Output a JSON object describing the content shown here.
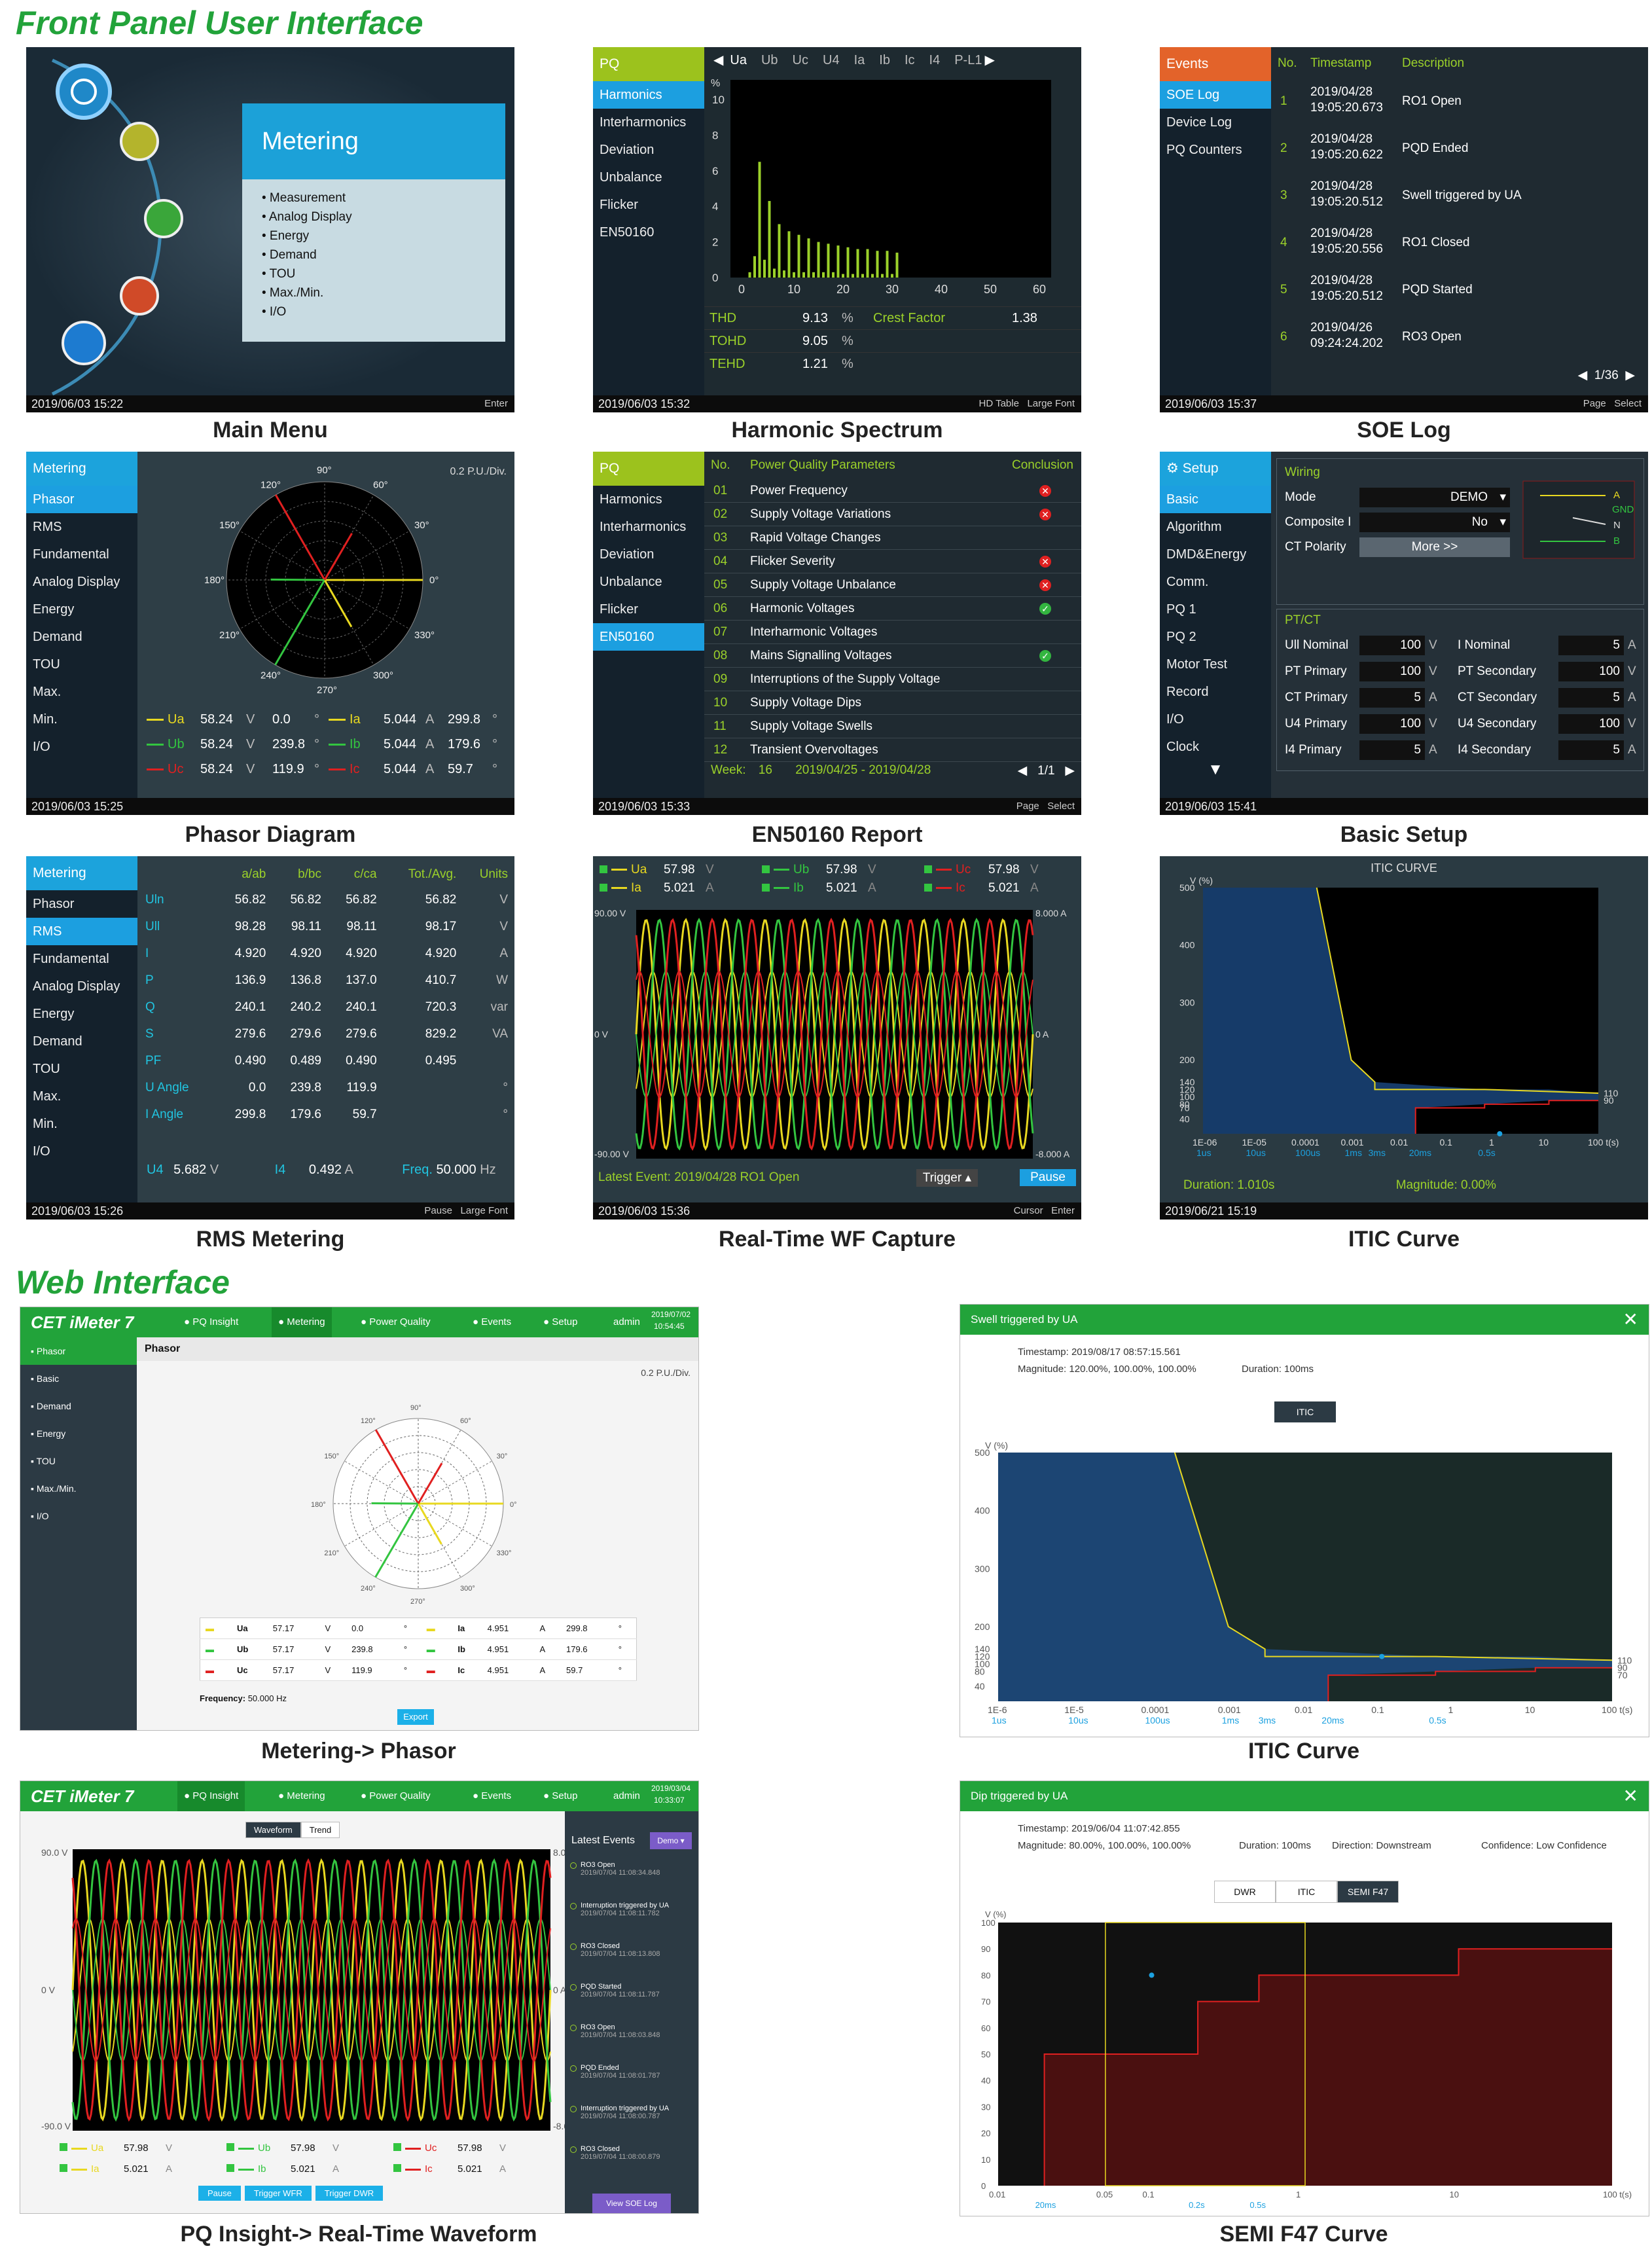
{
  "sections": {
    "front_panel": "Front Panel User Interface",
    "web": "Web Interface"
  },
  "captions": {
    "main_menu": "Main Menu",
    "harmonic": "Harmonic Spectrum",
    "soe": "SOE Log",
    "phasor": "Phasor Diagram",
    "en50160": "EN50160 Report",
    "setup": "Basic Setup",
    "rms": "RMS Metering",
    "wf": "Real-Time WF Capture",
    "itic": "ITIC Curve",
    "web_phasor": "Metering-> Phasor",
    "web_itic": "ITIC Curve",
    "web_wave": "PQ Insight-> Real-Time Waveform",
    "web_semi": "SEMI F47 Curve"
  },
  "main_menu": {
    "title": "Metering",
    "items": [
      "Measurement",
      "Analog Display",
      "Energy",
      "Demand",
      "TOU",
      "Max./Min.",
      "I/O"
    ],
    "time": "2019/06/03 15:22",
    "hint": "Enter"
  },
  "harmonic": {
    "tab": "PQ",
    "menu": [
      "Harmonics",
      "Interharmonics",
      "Deviation",
      "Unbalance",
      "Flicker",
      "EN50160"
    ],
    "channels": [
      "Ua",
      "Ub",
      "Uc",
      "U4",
      "Ia",
      "Ib",
      "Ic",
      "I4",
      "P-L1"
    ],
    "unit": "%",
    "yticks": [
      "10",
      "8",
      "6",
      "4",
      "2",
      "0"
    ],
    "xticks": [
      "0",
      "10",
      "20",
      "30",
      "40",
      "50",
      "60"
    ],
    "rows": [
      {
        "k": "THD",
        "v": "9.13",
        "u": "%",
        "k2": "Crest Factor",
        "v2": "1.38"
      },
      {
        "k": "TOHD",
        "v": "9.05",
        "u": "%"
      },
      {
        "k": "TEHD",
        "v": "1.21",
        "u": "%"
      }
    ],
    "time": "2019/06/03 15:32",
    "hint1": "HD Table",
    "hint2": "Large Font"
  },
  "soe": {
    "tab": "Events",
    "menu": [
      "SOE Log",
      "Device Log",
      "PQ Counters"
    ],
    "cols": [
      "No.",
      "Timestamp",
      "Description"
    ],
    "rows": [
      {
        "n": "1",
        "d": "2019/04/28",
        "t": "19:05:20.673",
        "desc": "RO1 Open"
      },
      {
        "n": "2",
        "d": "2019/04/28",
        "t": "19:05:20.622",
        "desc": "PQD Ended"
      },
      {
        "n": "3",
        "d": "2019/04/28",
        "t": "19:05:20.512",
        "desc": "Swell triggered by UA"
      },
      {
        "n": "4",
        "d": "2019/04/28",
        "t": "19:05:20.556",
        "desc": "RO1 Closed"
      },
      {
        "n": "5",
        "d": "2019/04/28",
        "t": "19:05:20.512",
        "desc": "PQD Started"
      },
      {
        "n": "6",
        "d": "2019/04/26",
        "t": "09:24:24.202",
        "desc": "RO3 Open"
      }
    ],
    "page": "1/36",
    "time": "2019/06/03 15:37",
    "hint1": "Page",
    "hint2": "Select"
  },
  "phasor": {
    "tab": "Metering",
    "menu": [
      "Phasor",
      "RMS",
      "Fundamental",
      "Analog Display",
      "Energy",
      "Demand",
      "TOU",
      "Max.",
      "Min.",
      "I/O"
    ],
    "scale": "0.2 P.U./Div.",
    "angles": [
      "90°",
      "60°",
      "30°",
      "0°",
      "330°",
      "300°",
      "270°",
      "240°",
      "210°",
      "180°",
      "150°",
      "120°"
    ],
    "rows": [
      {
        "n": "Ua",
        "v": "58.24",
        "u": "V",
        "a": "0.0",
        "i": "Ia",
        "iv": "5.044",
        "iu": "A",
        "ia": "299.8"
      },
      {
        "n": "Ub",
        "v": "58.24",
        "u": "V",
        "a": "239.8",
        "i": "Ib",
        "iv": "5.044",
        "iu": "A",
        "ia": "179.6"
      },
      {
        "n": "Uc",
        "v": "58.24",
        "u": "V",
        "a": "119.9",
        "i": "Ic",
        "iv": "5.044",
        "iu": "A",
        "ia": "59.7"
      }
    ],
    "deg": "°",
    "time": "2019/06/03 15:25"
  },
  "en50160": {
    "tab": "PQ",
    "menu": [
      "Harmonics",
      "Interharmonics",
      "Deviation",
      "Unbalance",
      "Flicker",
      "EN50160"
    ],
    "cols": [
      "No.",
      "Power Quality Parameters",
      "Conclusion"
    ],
    "rows": [
      {
        "n": "01",
        "p": "Power Frequency",
        "c": "x"
      },
      {
        "n": "02",
        "p": "Supply Voltage Variations",
        "c": "x"
      },
      {
        "n": "03",
        "p": "Rapid Voltage Changes",
        "c": ""
      },
      {
        "n": "04",
        "p": "Flicker Severity",
        "c": "x"
      },
      {
        "n": "05",
        "p": "Supply Voltage Unbalance",
        "c": "x"
      },
      {
        "n": "06",
        "p": "Harmonic Voltages",
        "c": "ok"
      },
      {
        "n": "07",
        "p": "Interharmonic Voltages",
        "c": ""
      },
      {
        "n": "08",
        "p": "Mains Signalling Voltages",
        "c": "ok"
      },
      {
        "n": "09",
        "p": "Interruptions of the Supply Voltage",
        "c": ""
      },
      {
        "n": "10",
        "p": "Supply Voltage Dips",
        "c": ""
      },
      {
        "n": "11",
        "p": "Supply Voltage Swells",
        "c": ""
      },
      {
        "n": "12",
        "p": "Transient Overvoltages",
        "c": ""
      }
    ],
    "week_label": "Week:",
    "week": "16",
    "range": "2019/04/25 - 2019/04/28",
    "page": "1/1",
    "time": "2019/06/03 15:33",
    "hint1": "Page",
    "hint2": "Select"
  },
  "setup": {
    "tab": "Setup",
    "menu": [
      "Basic",
      "Algorithm",
      "DMD&Energy",
      "Comm.",
      "PQ 1",
      "PQ 2",
      "Motor Test",
      "Record",
      "I/O",
      "Clock"
    ],
    "wiring_title": "Wiring",
    "mode_label": "Mode",
    "mode": "DEMO",
    "composite_label": "Composite I",
    "composite": "No",
    "ct_pol_label": "CT Polarity",
    "more": "More >>",
    "wiring_labels": [
      "A",
      "GND",
      "N",
      "B"
    ],
    "ptct_title": "PT/CT",
    "ptct": [
      {
        "k": "Ull Nominal",
        "v": "100",
        "u": "V",
        "k2": "I Nominal",
        "v2": "5",
        "u2": "A"
      },
      {
        "k": "PT Primary",
        "v": "100",
        "u": "V",
        "k2": "PT Secondary",
        "v2": "100",
        "u2": "V"
      },
      {
        "k": "CT Primary",
        "v": "5",
        "u": "A",
        "k2": "CT Secondary",
        "v2": "5",
        "u2": "A"
      },
      {
        "k": "U4 Primary",
        "v": "100",
        "u": "V",
        "k2": "U4 Secondary",
        "v2": "100",
        "u2": "V"
      },
      {
        "k": "I4 Primary",
        "v": "5",
        "u": "A",
        "k2": "I4 Secondary",
        "v2": "5",
        "u2": "A"
      }
    ],
    "time": "2019/06/03 15:41"
  },
  "rms": {
    "tab": "Metering",
    "menu": [
      "Phasor",
      "RMS",
      "Fundamental",
      "Analog Display",
      "Energy",
      "Demand",
      "TOU",
      "Max.",
      "Min.",
      "I/O"
    ],
    "cols": [
      "",
      "a/ab",
      "b/bc",
      "c/ca",
      "Tot./Avg.",
      "Units"
    ],
    "rows": [
      [
        "Uln",
        "56.82",
        "56.82",
        "56.82",
        "56.82",
        "V"
      ],
      [
        "Ull",
        "98.28",
        "98.11",
        "98.11",
        "98.17",
        "V"
      ],
      [
        "I",
        "4.920",
        "4.920",
        "4.920",
        "4.920",
        "A"
      ],
      [
        "P",
        "136.9",
        "136.8",
        "137.0",
        "410.7",
        "W"
      ],
      [
        "Q",
        "240.1",
        "240.2",
        "240.1",
        "720.3",
        "var"
      ],
      [
        "S",
        "279.6",
        "279.6",
        "279.6",
        "829.2",
        "VA"
      ],
      [
        "PF",
        "0.490",
        "0.489",
        "0.490",
        "0.495",
        ""
      ],
      [
        "U Angle",
        "0.0",
        "239.8",
        "119.9",
        "",
        "°"
      ],
      [
        "I Angle",
        "299.8",
        "179.6",
        "59.7",
        "",
        "°"
      ]
    ],
    "u4_label": "U4",
    "u4": "5.682",
    "u4_u": "V",
    "i4_label": "I4",
    "i4": "0.492",
    "i4_u": "A",
    "freq_label": "Freq.",
    "freq": "50.000",
    "freq_u": "Hz",
    "time": "2019/06/03 15:26",
    "hint1": "Pause",
    "hint2": "Large Font"
  },
  "wf": {
    "legend": [
      {
        "n": "Ua",
        "v": "57.98",
        "u": "V",
        "c": "#e8d820"
      },
      {
        "n": "Ub",
        "v": "57.98",
        "u": "V",
        "c": "#33c540"
      },
      {
        "n": "Uc",
        "v": "57.98",
        "u": "V",
        "c": "#e02020"
      },
      {
        "n": "Ia",
        "v": "5.021",
        "u": "A",
        "c": "#e8d820"
      },
      {
        "n": "Ib",
        "v": "5.021",
        "u": "A",
        "c": "#33c540"
      },
      {
        "n": "Ic",
        "v": "5.021",
        "u": "A",
        "c": "#e02020"
      }
    ],
    "y_left": [
      "90.00 V",
      "0 V",
      "-90.00 V"
    ],
    "y_right": [
      "8.000 A",
      "0 A",
      "-8.000 A"
    ],
    "event_label": "Latest Event:",
    "event": "2019/04/28 RO1 Open",
    "trigger": "Trigger",
    "pause": "Pause",
    "time": "2019/06/03 15:36",
    "hint1": "Cursor",
    "hint2": "Enter"
  },
  "itic": {
    "title": "ITIC   CURVE",
    "ylabel": "V (%)",
    "yticks": [
      "500",
      "400",
      "300",
      "200",
      "140",
      "120",
      "100",
      "80",
      "70",
      "40"
    ],
    "xticks": [
      "1E-06",
      "1E-05",
      "0.0001",
      "0.001",
      "0.01",
      "0.1",
      "1",
      "10",
      "100 t(s)"
    ],
    "xsub": [
      "1us",
      "10us",
      "100us",
      "1ms",
      "3ms",
      "20ms",
      "0.5s"
    ],
    "right": [
      "110",
      "90"
    ],
    "duration_label": "Duration:",
    "duration": "1.010s",
    "mag_label": "Magnitude:",
    "magnitude": "0.00%",
    "time": "2019/06/21 15:19"
  },
  "web_phasor": {
    "brand": "CET iMeter 7",
    "nav": [
      "PQ Insight",
      "Metering",
      "Power Quality",
      "Events",
      "Setup"
    ],
    "user": "admin",
    "date": "2019/07/02",
    "clock": "10:54:45",
    "menu": [
      "Phasor",
      "Basic",
      "Demand",
      "Energy",
      "TOU",
      "Max./Min.",
      "I/O"
    ],
    "page_title": "Phasor",
    "scale": "0.2 P.U./Div.",
    "angles": [
      "90°",
      "60°",
      "30°",
      "0°",
      "330°",
      "300°",
      "270°",
      "240°",
      "210°",
      "180°",
      "150°",
      "120°"
    ],
    "rows": [
      {
        "n": "Ua",
        "v": "57.17",
        "u": "V",
        "a": "0.0",
        "i": "Ia",
        "iv": "4.951",
        "iu": "A",
        "ia": "299.8"
      },
      {
        "n": "Ub",
        "v": "57.17",
        "u": "V",
        "a": "239.8",
        "i": "Ib",
        "iv": "4.951",
        "iu": "A",
        "ia": "179.6"
      },
      {
        "n": "Uc",
        "v": "57.17",
        "u": "V",
        "a": "119.9",
        "i": "Ic",
        "iv": "4.951",
        "iu": "A",
        "ia": "59.7"
      }
    ],
    "deg": "°",
    "freq_label": "Frequency:",
    "freq": "50.000 Hz",
    "export": "Export"
  },
  "web_itic": {
    "title": "Swell triggered by UA",
    "timestamp": "Timestamp: 2019/08/17 08:57:15.561",
    "magnitude": "Magnitude: 120.00%, 100.00%, 100.00%",
    "duration": "Duration: 100ms",
    "btn": "ITIC",
    "ylabel": "V (%)",
    "yticks": [
      "500",
      "400",
      "300",
      "200",
      "140",
      "120",
      "100",
      "80",
      "40"
    ],
    "xticks": [
      "1E-6",
      "1E-5",
      "0.0001",
      "0.001",
      "0.01",
      "0.1",
      "1",
      "10",
      "100 t(s)"
    ],
    "xsub": [
      "1us",
      "10us",
      "100us",
      "1ms",
      "3ms",
      "20ms",
      "0.5s"
    ],
    "right": [
      "110",
      "90",
      "70"
    ]
  },
  "web_wave": {
    "brand": "CET iMeter 7",
    "nav": [
      "PQ Insight",
      "Metering",
      "Power Quality",
      "Events",
      "Setup"
    ],
    "user": "admin",
    "date": "2019/03/04",
    "clock": "10:33:07",
    "tabs": [
      "Waveform",
      "Trend"
    ],
    "y_left": [
      "90.0 V",
      "0 V",
      "-90.0 V"
    ],
    "y_right": [
      "8.0 A",
      "0 A",
      "-8.0 A"
    ],
    "legend": [
      {
        "n": "Ua",
        "v": "57.98",
        "u": "V",
        "c": "#e8d820"
      },
      {
        "n": "Ub",
        "v": "57.98",
        "u": "V",
        "c": "#33c540"
      },
      {
        "n": "Uc",
        "v": "57.98",
        "u": "V",
        "c": "#e02020"
      },
      {
        "n": "Ia",
        "v": "5.021",
        "u": "A",
        "c": "#e8d820"
      },
      {
        "n": "Ib",
        "v": "5.021",
        "u": "A",
        "c": "#33c540"
      },
      {
        "n": "Ic",
        "v": "5.021",
        "u": "A",
        "c": "#e02020"
      }
    ],
    "buttons": [
      "Pause",
      "Trigger WFR",
      "Trigger DWR"
    ],
    "events_title": "Latest Events",
    "events_select": "Demo",
    "events": [
      {
        "t": "RO3 Open",
        "d": "2019/07/04 11:08:34.848"
      },
      {
        "t": "Interruption triggered by UA",
        "d": "2019/07/04 11:08:11.782"
      },
      {
        "t": "RO3 Closed",
        "d": "2019/07/04 11:08:13.808"
      },
      {
        "t": "PQD Started",
        "d": "2019/07/04 11:08:11.787"
      },
      {
        "t": "RO3 Open",
        "d": "2019/07/04 11:08:03.848"
      },
      {
        "t": "PQD Ended",
        "d": "2019/07/04 11:08:01.787"
      },
      {
        "t": "Interruption triggered by UA",
        "d": "2019/07/04 11:08:00.787"
      },
      {
        "t": "RO3 Closed",
        "d": "2019/07/04 11:08:00.879"
      }
    ],
    "soe_btn": "View SOE Log"
  },
  "web_semi": {
    "title": "Dip triggered by UA",
    "timestamp": "Timestamp: 2019/06/04 11:07:42.855",
    "magnitude": "Magnitude: 80.00%, 100.00%, 100.00%",
    "duration": "Duration: 100ms",
    "direction": "Direction: Downstream",
    "confidence": "Confidence: Low Confidence",
    "tabs": [
      "DWR",
      "ITIC",
      "SEMI F47"
    ],
    "ylabel": "V (%)",
    "yticks": [
      "100",
      "90",
      "80",
      "70",
      "60",
      "50",
      "40",
      "30",
      "20",
      "10",
      "0"
    ],
    "xticks": [
      "0.01",
      "0.05",
      "0.1",
      "1",
      "10",
      "100 t(s)"
    ],
    "xsub": [
      "20ms",
      "0.2s",
      "0.5s"
    ]
  }
}
